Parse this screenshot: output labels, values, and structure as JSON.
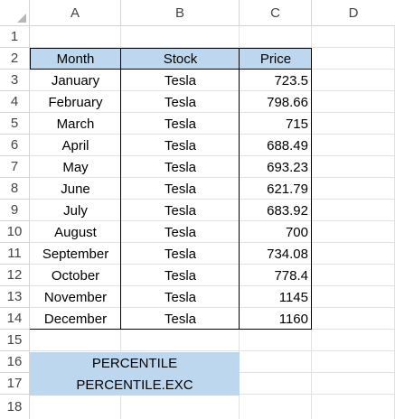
{
  "spreadsheet": {
    "column_headers": [
      "A",
      "B",
      "C",
      "D"
    ],
    "row_numbers": [
      "1",
      "2",
      "3",
      "4",
      "5",
      "6",
      "7",
      "8",
      "9",
      "10",
      "11",
      "12",
      "13",
      "14",
      "15",
      "16",
      "17",
      "18"
    ],
    "header_fill_color": "#bdd7ee",
    "table": {
      "headers": {
        "month": "Month",
        "stock": "Stock",
        "price": "Price"
      },
      "rows": [
        {
          "month": "January",
          "stock": "Tesla",
          "price": "723.5"
        },
        {
          "month": "February",
          "stock": "Tesla",
          "price": "798.66"
        },
        {
          "month": "March",
          "stock": "Tesla",
          "price": "715"
        },
        {
          "month": "April",
          "stock": "Tesla",
          "price": "688.49"
        },
        {
          "month": "May",
          "stock": "Tesla",
          "price": "693.23"
        },
        {
          "month": "June",
          "stock": "Tesla",
          "price": "621.79"
        },
        {
          "month": "July",
          "stock": "Tesla",
          "price": "683.92"
        },
        {
          "month": "August",
          "stock": "Tesla",
          "price": "700"
        },
        {
          "month": "September",
          "stock": "Tesla",
          "price": "734.08"
        },
        {
          "month": "October",
          "stock": "Tesla",
          "price": "778.4"
        },
        {
          "month": "November",
          "stock": "Tesla",
          "price": "1145"
        },
        {
          "month": "December",
          "stock": "Tesla",
          "price": "1160"
        }
      ]
    },
    "labels": {
      "row16": "PERCENTILE",
      "row17": "PERCENTILE.EXC"
    }
  }
}
